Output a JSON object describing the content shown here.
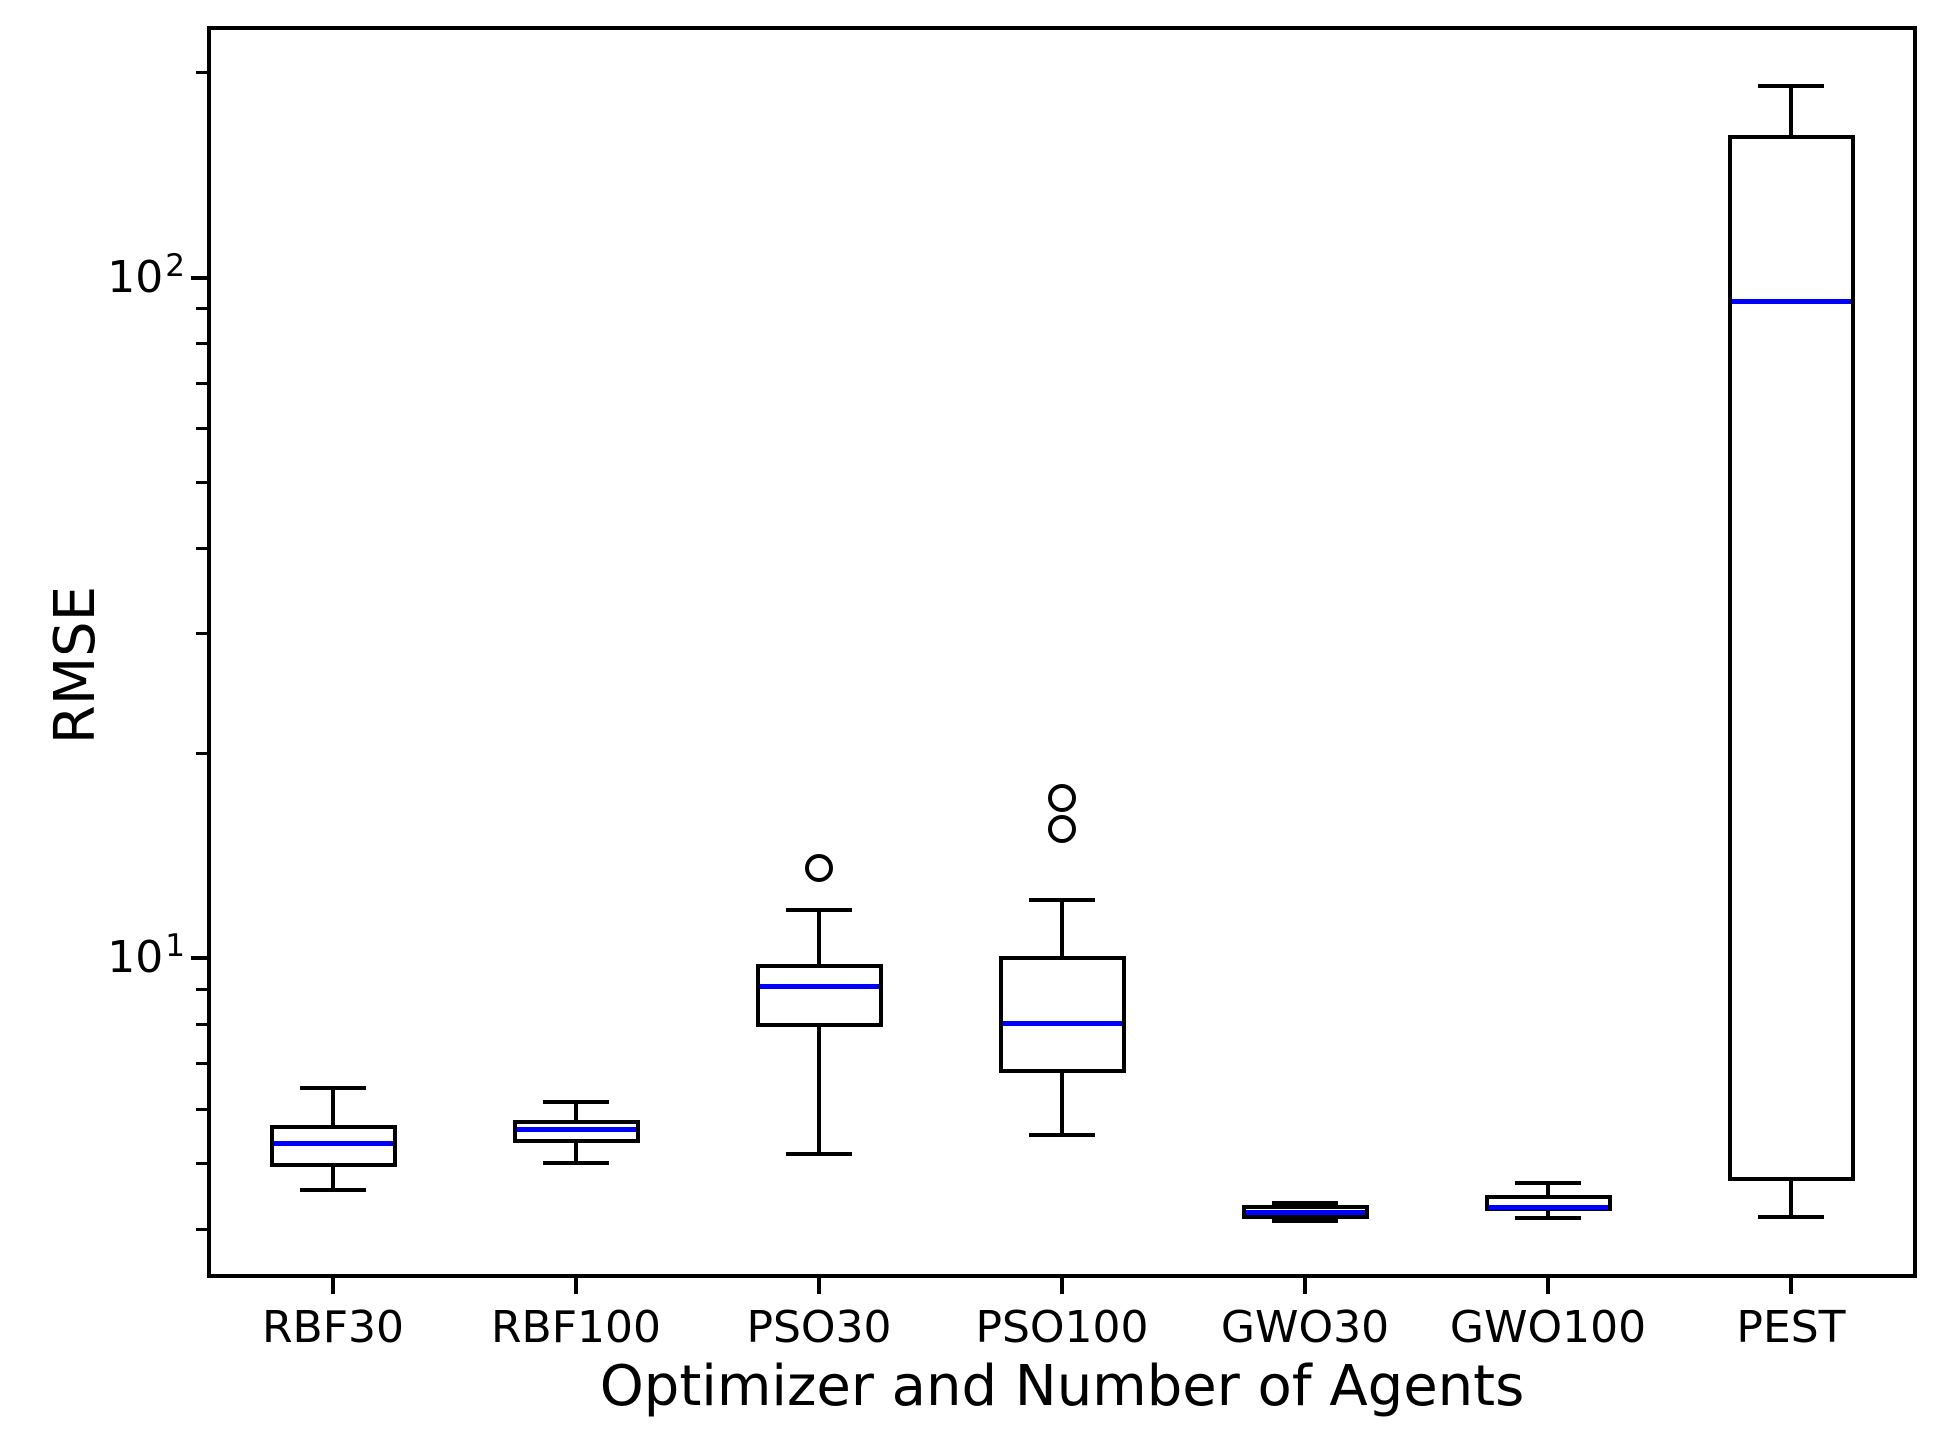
{
  "figure": {
    "background": "#ffffff"
  },
  "chart_data": {
    "type": "boxplot",
    "title": "",
    "xlabel": "Optimizer and Number of Agents",
    "ylabel": "RMSE",
    "yscale": "log",
    "ylim": [
      3.44,
      231
    ],
    "grid": false,
    "legend": false,
    "yticks": [
      {
        "value": 10,
        "base": "10",
        "exponent": "1"
      },
      {
        "value": 100,
        "base": "10",
        "exponent": "2"
      }
    ],
    "categories": [
      "RBF30",
      "RBF100",
      "PSO30",
      "PSO100",
      "GWO30",
      "GWO100",
      "PEST"
    ],
    "boxes": [
      {
        "label": "RBF30",
        "whislo": 4.57,
        "q1": 4.94,
        "med": 5.35,
        "q3": 5.69,
        "whishi": 6.46,
        "fliers": []
      },
      {
        "label": "RBF100",
        "whislo": 5.0,
        "q1": 5.35,
        "med": 5.61,
        "q3": 5.79,
        "whishi": 6.15,
        "fliers": []
      },
      {
        "label": "PSO30",
        "whislo": 5.17,
        "q1": 7.92,
        "med": 9.08,
        "q3": 9.8,
        "whishi": 11.8,
        "fliers": [
          13.6
        ]
      },
      {
        "label": "PSO100",
        "whislo": 5.51,
        "q1": 6.79,
        "med": 8.02,
        "q3": 10.1,
        "whishi": 12.2,
        "fliers": [
          15.5,
          17.2
        ]
      },
      {
        "label": "GWO30",
        "whislo": 4.11,
        "q1": 4.14,
        "med": 4.23,
        "q3": 4.34,
        "whishi": 4.37,
        "fliers": []
      },
      {
        "label": "GWO100",
        "whislo": 4.16,
        "q1": 4.26,
        "med": 4.31,
        "q3": 4.5,
        "whishi": 4.68,
        "fliers": []
      },
      {
        "label": "PEST",
        "whislo": 4.17,
        "q1": 4.72,
        "med": 92.1,
        "q3": 162,
        "whishi": 191,
        "fliers": []
      }
    ],
    "colors": {
      "median_line": "#0000ff",
      "box_line": "#000000",
      "background": "#ffffff"
    }
  }
}
